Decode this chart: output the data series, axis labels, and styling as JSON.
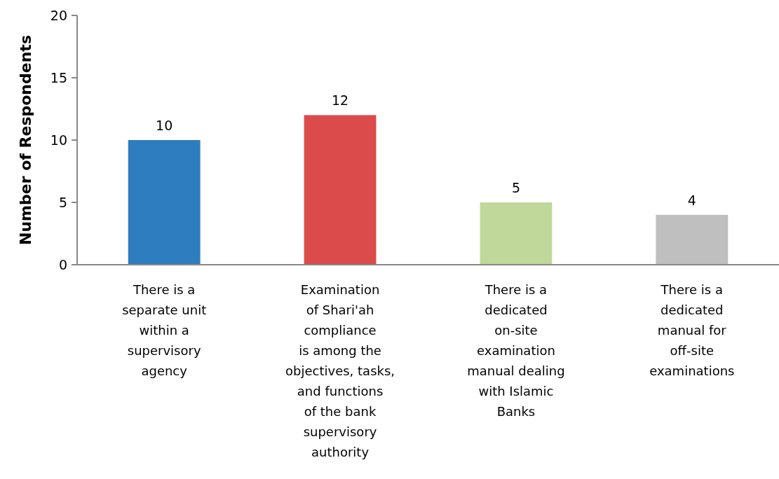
{
  "chart_data": {
    "type": "bar",
    "ylabel": "Number of Respondents",
    "categories": [
      "There is a\nseparate unit\nwithin a\nsupervisory\nagency",
      "Examination\nof Shari'ah\ncompliance\nis among the\nobjectives, tasks,\nand functions\nof the bank\nsupervisory\nauthority",
      "There is a\ndedicated\non-site\nexamination\nmanual dealing\nwith Islamic\nBanks",
      "There is a\ndedicated\nmanual for\noff-site\nexaminations"
    ],
    "values": [
      10,
      12,
      5,
      4
    ],
    "colors": [
      "#2e7ebf",
      "#db4b4b",
      "#c0d89a",
      "#bfbfbf"
    ],
    "ylim": [
      0,
      20
    ],
    "yticks": [
      0,
      5,
      10,
      15,
      20
    ],
    "grid": false,
    "data_labels": true
  }
}
